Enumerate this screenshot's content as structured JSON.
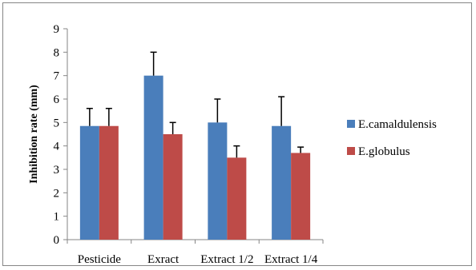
{
  "chart_data": {
    "type": "bar",
    "title": "",
    "xlabel": "",
    "ylabel": "Inhibition rate (mm)",
    "ylim": [
      0,
      9
    ],
    "yticks": [
      0,
      1,
      2,
      3,
      4,
      5,
      6,
      7,
      8,
      9
    ],
    "categories": [
      "Pesticide",
      "Exract",
      "Extract 1/2",
      "Extract 1/4"
    ],
    "series": [
      {
        "name": "E.camaldulensis",
        "color": "#4a7ebb",
        "values": [
          4.85,
          7.0,
          5.0,
          4.85
        ],
        "errors": [
          0.75,
          1.0,
          1.0,
          1.25
        ]
      },
      {
        "name": "E.globulus",
        "color": "#be4b48",
        "values": [
          4.85,
          4.5,
          3.5,
          3.7
        ],
        "errors": [
          0.75,
          0.5,
          0.5,
          0.25
        ]
      }
    ],
    "grid": false,
    "legend_position": "right"
  }
}
